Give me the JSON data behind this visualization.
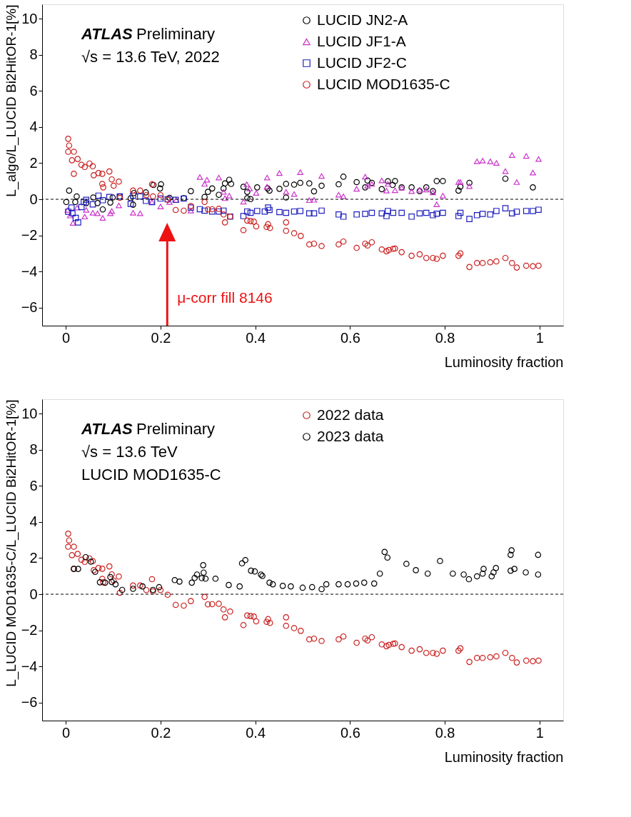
{
  "chart_data": [
    {
      "type": "scatter",
      "xlabel": "Luminosity fraction",
      "ylabel": "L_algo/L_LUCID Bi2HitOR-1[%]",
      "xlim": [
        -0.05,
        1.05
      ],
      "xticks": [
        0,
        0.2,
        0.4,
        0.6,
        0.8,
        1
      ],
      "ylim": [
        -7,
        10.8
      ],
      "yticks": [
        -6,
        -4,
        -2,
        0,
        2,
        4,
        6,
        8,
        10
      ],
      "grid": false,
      "legend": "top right",
      "ref_lines": [
        {
          "axis": "y",
          "value": 0,
          "line_style": "dashed",
          "color": "#000000"
        },
        {
          "axis": "x",
          "value": 0.214,
          "label": "μ-corr fill 8146",
          "color": "#ee1111"
        }
      ],
      "annotations": [
        "ATLAS",
        "Preliminary",
        "√s = 13.6 TeV, 2022"
      ],
      "series": [
        {
          "name": "LUCID JN2-A",
          "color": "#000000",
          "marker": "circle",
          "x": [
            0.007,
            0.001,
            0.023,
            0.02,
            0.043,
            0.058,
            0.067,
            0.078,
            0.094,
            0.099,
            0.114,
            0.137,
            0.142,
            0.144,
            0.169,
            0.185,
            0.201,
            0.199,
            0.219,
            0.249,
            0.264,
            0.293,
            0.3,
            0.309,
            0.323,
            0.333,
            0.336,
            0.345,
            0.349,
            0.375,
            0.383,
            0.383,
            0.39,
            0.404,
            0.426,
            0.43,
            0.451,
            0.465,
            0.465,
            0.482,
            0.495,
            0.514,
            0.524,
            0.54,
            0.576,
            0.586,
            0.614,
            0.632,
            0.637,
            0.646,
            0.667,
            0.68,
            0.69,
            0.695,
            0.709,
            0.73,
            0.747,
            0.761,
            0.775,
            0.783,
            0.796,
            0.829,
            0.833,
            0.852,
            0.928,
            0.986
          ],
          "values": [
            0.48,
            -0.15,
            0.16,
            -0.15,
            -0.21,
            0.1,
            -0.21,
            -0.56,
            -0.18,
            0.1,
            0.16,
            0.06,
            -0.3,
            0.35,
            0.38,
            0.79,
            0.83,
            0.6,
            0.08,
            0.06,
            0.45,
            0.13,
            0.41,
            0.6,
            0.25,
            0.6,
            0.88,
            1.08,
            0.85,
            0.69,
            0.41,
            0.06,
            0.01,
            0.66,
            0.6,
            0.48,
            0.58,
            0.85,
            0.1,
            0.81,
            0.91,
            0.88,
            0.44,
            0.75,
            0.83,
            1.25,
            0.95,
            0.66,
            1.04,
            0.91,
            0.56,
            1.0,
            0.79,
            1.01,
            0.66,
            0.66,
            0.45,
            0.66,
            0.45,
            1.01,
            1.01,
            0.48,
            0.7,
            0.91,
            1.14,
            0.66
          ]
        },
        {
          "name": "LUCID JF1-A",
          "color": "#cc33cc",
          "marker": "triangle",
          "x": [
            0.004,
            0.009,
            0.015,
            0.024,
            0.04,
            0.043,
            0.057,
            0.067,
            0.078,
            0.094,
            0.097,
            0.112,
            0.142,
            0.157,
            0.182,
            0.2,
            0.219,
            0.233,
            0.264,
            0.283,
            0.293,
            0.298,
            0.323,
            0.333,
            0.336,
            0.345,
            0.375,
            0.382,
            0.388,
            0.402,
            0.425,
            0.425,
            0.451,
            0.465,
            0.482,
            0.495,
            0.514,
            0.524,
            0.54,
            0.576,
            0.586,
            0.614,
            0.632,
            0.637,
            0.646,
            0.667,
            0.677,
            0.68,
            0.695,
            0.709,
            0.73,
            0.747,
            0.761,
            0.775,
            0.783,
            0.796,
            0.829,
            0.833,
            0.852,
            0.868,
            0.88,
            0.896,
            0.909,
            0.928,
            0.942,
            0.952,
            0.972,
            0.986,
            0.998
          ],
          "values": [
            -0.59,
            -0.9,
            -1.31,
            -0.46,
            -0.96,
            -0.59,
            -0.75,
            -0.78,
            -1.03,
            -0.78,
            -0.65,
            -0.34,
            -0.75,
            -0.78,
            -0.15,
            -0.4,
            -0.15,
            -0.03,
            -0.63,
            1.23,
            0.85,
            1.08,
            1.2,
            0.41,
            0.06,
            0.2,
            -0.13,
            0.83,
            0.6,
            0.35,
            1.2,
            0.7,
            1.45,
            0.41,
            0.29,
            1.5,
            -0.05,
            -0.03,
            1.29,
            0.25,
            0.16,
            0.58,
            1.25,
            0.75,
            0.85,
            1.04,
            0.48,
            0.85,
            0.5,
            0.64,
            0.45,
            0.53,
            0.54,
            0.38,
            -0.28,
            0.2,
            0.95,
            0.95,
            0.73,
            2.1,
            2.14,
            2.1,
            2.01,
            1.56,
            2.45,
            0.95,
            2.4,
            1.48,
            2.23
          ]
        },
        {
          "name": "LUCID JF2-C",
          "color": "#1f1fbf",
          "marker": "square",
          "x": [
            0.005,
            0.012,
            0.014,
            0.021,
            0.026,
            0.033,
            0.038,
            0.043,
            0.057,
            0.069,
            0.078,
            0.092,
            0.114,
            0.137,
            0.142,
            0.157,
            0.169,
            0.182,
            0.2,
            0.215,
            0.232,
            0.249,
            0.264,
            0.283,
            0.293,
            0.309,
            0.323,
            0.333,
            0.347,
            0.375,
            0.383,
            0.39,
            0.404,
            0.42,
            0.427,
            0.43,
            0.451,
            0.465,
            0.482,
            0.495,
            0.514,
            0.524,
            0.54,
            0.576,
            0.586,
            0.614,
            0.632,
            0.646,
            0.667,
            0.677,
            0.68,
            0.691,
            0.709,
            0.73,
            0.747,
            0.761,
            0.775,
            0.783,
            0.796,
            0.829,
            0.833,
            0.852,
            0.868,
            0.88,
            0.896,
            0.909,
            0.928,
            0.942,
            0.952,
            0.972,
            0.986,
            0.998
          ],
          "values": [
            -0.69,
            -0.46,
            -0.78,
            -1.03,
            -1.28,
            -0.43,
            -0.15,
            -0.03,
            -0.28,
            0.2,
            -0.05,
            0.13,
            0.16,
            -0.25,
            0.2,
            0.16,
            -0.09,
            -0.15,
            0.04,
            0.0,
            -0.03,
            0.04,
            -0.46,
            -0.55,
            -0.63,
            -0.68,
            -0.68,
            -0.63,
            -0.96,
            -0.93,
            -0.68,
            -0.75,
            -0.65,
            -0.68,
            -0.46,
            -0.59,
            -0.71,
            -0.75,
            -0.68,
            -0.65,
            -0.78,
            -0.78,
            -0.63,
            -0.84,
            -0.96,
            -0.84,
            -0.81,
            -0.75,
            -0.78,
            -0.93,
            -0.65,
            -0.75,
            -0.75,
            -0.96,
            -0.78,
            -0.75,
            -0.88,
            -0.8,
            -0.75,
            -0.93,
            -0.75,
            -1.09,
            -0.88,
            -0.81,
            -0.84,
            -0.65,
            -0.5,
            -0.78,
            -0.69,
            -0.65,
            -0.65,
            -0.58
          ]
        },
        {
          "name": "LUCID MOD1635-C",
          "color": "#cc2222",
          "marker": "circle",
          "x": [
            0.005,
            0.007,
            0.005,
            0.017,
            0.013,
            0.025,
            0.017,
            0.033,
            0.04,
            0.05,
            0.057,
            0.059,
            0.069,
            0.077,
            0.077,
            0.079,
            0.092,
            0.097,
            0.101,
            0.112,
            0.114,
            0.142,
            0.157,
            0.17,
            0.184,
            0.182,
            0.2,
            0.215,
            0.232,
            0.249,
            0.264,
            0.293,
            0.3,
            0.309,
            0.323,
            0.333,
            0.336,
            0.347,
            0.375,
            0.383,
            0.39,
            0.397,
            0.402,
            0.424,
            0.427,
            0.431,
            0.465,
            0.465,
            0.482,
            0.496,
            0.514,
            0.524,
            0.54,
            0.576,
            0.586,
            0.614,
            0.632,
            0.637,
            0.646,
            0.667,
            0.677,
            0.682,
            0.691,
            0.695,
            0.709,
            0.73,
            0.747,
            0.761,
            0.775,
            0.783,
            0.796,
            0.829,
            0.833,
            0.852,
            0.868,
            0.88,
            0.896,
            0.909,
            0.928,
            0.942,
            0.952,
            0.972,
            0.986,
            0.998
          ],
          "values": [
            3.35,
            2.98,
            2.63,
            2.63,
            2.16,
            2.23,
            1.41,
            1.91,
            1.79,
            1.98,
            1.83,
            1.33,
            1.45,
            1.41,
            0.85,
            0.66,
            1.54,
            1.1,
            0.75,
            0.98,
            0.08,
            0.48,
            0.48,
            0.23,
            0.16,
            0.83,
            0.23,
            -0.03,
            -0.59,
            -0.63,
            -0.38,
            -0.15,
            -0.56,
            -0.55,
            -0.53,
            -0.84,
            -1.28,
            -0.96,
            -1.71,
            -1.18,
            -1.21,
            -1.24,
            -1.5,
            -1.53,
            -1.38,
            -1.59,
            -1.28,
            -1.75,
            -1.88,
            -2.03,
            -2.5,
            -2.46,
            -2.59,
            -2.5,
            -2.34,
            -2.69,
            -2.46,
            -2.56,
            -2.38,
            -2.78,
            -2.88,
            -2.81,
            -2.75,
            -2.73,
            -2.93,
            -3.13,
            -3.05,
            -3.25,
            -3.25,
            -3.3,
            -3.13,
            -3.13,
            -3.0,
            -3.75,
            -3.53,
            -3.53,
            -3.49,
            -3.44,
            -3.25,
            -3.53,
            -3.78,
            -3.68,
            -3.71,
            -3.68
          ]
        }
      ]
    },
    {
      "type": "scatter",
      "xlabel": "Luminosity fraction",
      "ylabel": "L_LUCID MOD1635-C/L_LUCID Bi2HitOR-1[%]",
      "xlim": [
        -0.05,
        1.05
      ],
      "xticks": [
        0,
        0.2,
        0.4,
        0.6,
        0.8,
        1
      ],
      "ylim": [
        -7,
        10.8
      ],
      "yticks": [
        -6,
        -4,
        -2,
        0,
        2,
        4,
        6,
        8,
        10
      ],
      "grid": false,
      "legend": "top right",
      "ref_lines": [
        {
          "axis": "y",
          "value": 0,
          "line_style": "dashed",
          "color": "#000000"
        }
      ],
      "annotations": [
        "ATLAS",
        "Preliminary",
        "√s = 13.6 TeV",
        "LUCID MOD1635-C"
      ],
      "series": [
        {
          "name": "2022 data",
          "color": "#cc2222",
          "marker": "circle",
          "x": [
            0.005,
            0.007,
            0.005,
            0.017,
            0.013,
            0.025,
            0.017,
            0.033,
            0.04,
            0.05,
            0.057,
            0.059,
            0.069,
            0.077,
            0.077,
            0.079,
            0.092,
            0.097,
            0.101,
            0.112,
            0.114,
            0.142,
            0.157,
            0.17,
            0.184,
            0.182,
            0.2,
            0.215,
            0.232,
            0.249,
            0.264,
            0.293,
            0.3,
            0.309,
            0.323,
            0.333,
            0.336,
            0.347,
            0.375,
            0.383,
            0.39,
            0.397,
            0.402,
            0.424,
            0.427,
            0.431,
            0.465,
            0.465,
            0.482,
            0.496,
            0.514,
            0.524,
            0.54,
            0.576,
            0.586,
            0.614,
            0.632,
            0.637,
            0.646,
            0.667,
            0.677,
            0.682,
            0.691,
            0.695,
            0.709,
            0.73,
            0.747,
            0.761,
            0.775,
            0.783,
            0.796,
            0.829,
            0.833,
            0.852,
            0.868,
            0.88,
            0.896,
            0.909,
            0.928,
            0.942,
            0.952,
            0.972,
            0.986,
            0.998
          ],
          "values": [
            3.35,
            2.98,
            2.63,
            2.63,
            2.16,
            2.23,
            1.41,
            1.91,
            1.79,
            1.98,
            1.83,
            1.33,
            1.45,
            1.41,
            0.85,
            0.66,
            1.54,
            1.1,
            0.75,
            0.98,
            0.08,
            0.48,
            0.48,
            0.23,
            0.16,
            0.83,
            0.23,
            -0.03,
            -0.59,
            -0.63,
            -0.38,
            -0.15,
            -0.56,
            -0.55,
            -0.53,
            -0.84,
            -1.28,
            -0.96,
            -1.71,
            -1.18,
            -1.21,
            -1.24,
            -1.5,
            -1.53,
            -1.38,
            -1.59,
            -1.28,
            -1.75,
            -1.88,
            -2.03,
            -2.5,
            -2.46,
            -2.59,
            -2.5,
            -2.34,
            -2.69,
            -2.46,
            -2.56,
            -2.38,
            -2.78,
            -2.88,
            -2.81,
            -2.75,
            -2.73,
            -2.93,
            -3.13,
            -3.05,
            -3.25,
            -3.25,
            -3.3,
            -3.13,
            -3.13,
            -3.0,
            -3.75,
            -3.53,
            -3.53,
            -3.49,
            -3.44,
            -3.25,
            -3.53,
            -3.78,
            -3.68,
            -3.71,
            -3.68
          ]
        },
        {
          "name": "2023 data",
          "color": "#000000",
          "marker": "circle",
          "x": [
            0.017,
            0.026,
            0.042,
            0.053,
            0.062,
            0.072,
            0.083,
            0.094,
            0.097,
            0.105,
            0.119,
            0.142,
            0.162,
            0.184,
            0.197,
            0.23,
            0.24,
            0.266,
            0.272,
            0.277,
            0.287,
            0.29,
            0.291,
            0.295,
            0.316,
            0.344,
            0.367,
            0.372,
            0.379,
            0.391,
            0.399,
            0.412,
            0.415,
            0.43,
            0.437,
            0.458,
            0.475,
            0.5,
            0.52,
            0.54,
            0.55,
            0.576,
            0.595,
            0.613,
            0.63,
            0.651,
            0.663,
            0.673,
            0.679,
            0.719,
            0.739,
            0.764,
            0.79,
            0.817,
            0.84,
            0.851,
            0.868,
            0.88,
            0.882,
            0.899,
            0.903,
            0.908,
            0.939,
            0.941,
            0.939,
            0.947,
            0.971,
            0.997,
            0.997
          ],
          "values": [
            1.4,
            1.4,
            2.05,
            1.8,
            1.24,
            0.66,
            0.64,
            0.95,
            0.68,
            0.55,
            0.24,
            0.3,
            0.43,
            0.24,
            0.39,
            0.78,
            0.7,
            0.64,
            0.9,
            1.09,
            0.89,
            1.61,
            1.2,
            0.86,
            0.86,
            0.51,
            0.43,
            1.71,
            1.89,
            1.3,
            1.26,
            1.09,
            1.01,
            0.64,
            0.55,
            0.46,
            0.43,
            0.36,
            0.39,
            0.28,
            0.55,
            0.55,
            0.55,
            0.59,
            0.64,
            0.59,
            1.14,
            2.34,
            2.03,
            1.68,
            1.33,
            1.14,
            1.84,
            1.14,
            1.09,
            0.83,
            0.99,
            1.14,
            1.4,
            0.99,
            1.21,
            1.45,
            2.18,
            2.43,
            1.3,
            1.4,
            1.21,
            2.18,
            1.09
          ]
        }
      ]
    }
  ]
}
